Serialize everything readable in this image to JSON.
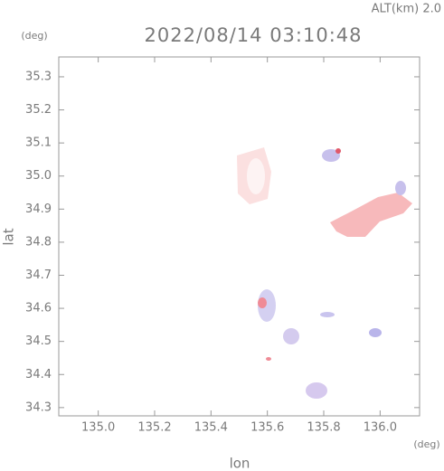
{
  "chart_data": {
    "type": "map",
    "title": "2022/08/14 03:10:48",
    "subtitle": "ALT(km) 2.0",
    "x_label": "lon",
    "y_label": "lat",
    "x_unit": "(deg)",
    "y_unit": "(deg)",
    "xlim": [
      134.86,
      136.14
    ],
    "ylim": [
      34.275,
      35.36
    ],
    "xticks": [
      {
        "value": 135,
        "label": "135.0"
      },
      135.2,
      135.4,
      135.6,
      135.8,
      {
        "value": 136,
        "label": "136.0"
      }
    ],
    "yticks": [
      34.3,
      34.4,
      34.5,
      34.6,
      34.7,
      34.8,
      34.9,
      {
        "value": 35,
        "label": "35.0"
      },
      35.1,
      35.2,
      35.3
    ]
  }
}
